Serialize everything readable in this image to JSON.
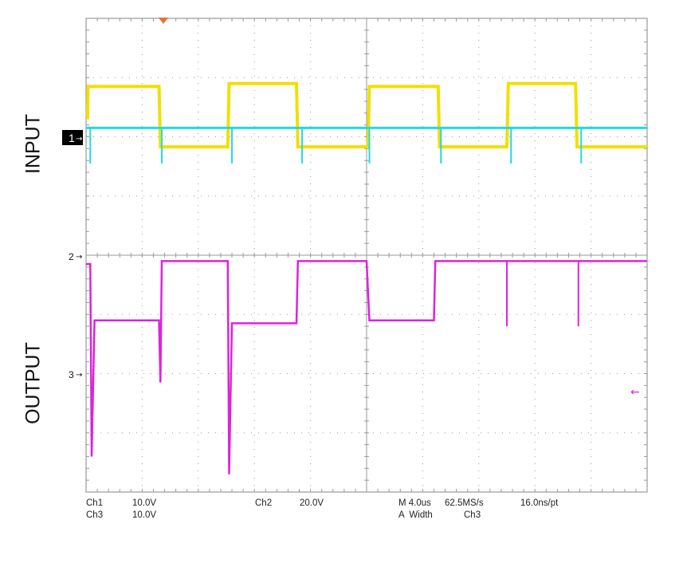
{
  "side_labels": {
    "top": "INPUT",
    "bottom": "OUTPUT"
  },
  "channel_markers": {
    "ch1": "1",
    "ch2": "2",
    "ch3": "3"
  },
  "readout": {
    "ch1_name": "Ch1",
    "ch1_scale": "10.0V",
    "ch3_name": "Ch3",
    "ch3_scale": "10.0V",
    "ch2_name": "Ch2",
    "ch2_scale": "20.0V",
    "timebase": "M 4.0us",
    "sample_rate": "62.5MS/s",
    "resolution": "16.0ns/pt",
    "measure": "A  Width",
    "measure_source": "Ch3"
  },
  "colors": {
    "background": "#ffffff",
    "grid": "#9a9a9a",
    "ch1": "#f0e000",
    "ch2": "#22d8ea",
    "ch3": "#dd22dd",
    "trigger": "#e87030",
    "marker_box": "#000000"
  },
  "chart_data": {
    "type": "line",
    "x_divisions": 10,
    "y_divisions": 8,
    "x_unit": "div",
    "y_unit": "div",
    "series": [
      {
        "channel": "Ch1",
        "color": "#f0e000",
        "points": [
          [
            0,
            1.68
          ],
          [
            0.05,
            1.68
          ],
          [
            0.07,
            1.15
          ],
          [
            2.6,
            1.15
          ],
          [
            2.65,
            2.17
          ],
          [
            5.05,
            2.17
          ],
          [
            5.1,
            1.1
          ],
          [
            7.5,
            1.1
          ],
          [
            7.55,
            2.17
          ],
          [
            9.95,
            2.17
          ],
          [
            10.05,
            2.17
          ],
          [
            10.1,
            1.15
          ],
          [
            12.55,
            1.15
          ],
          [
            12.6,
            2.17
          ],
          [
            15.0,
            2.17
          ],
          [
            15.05,
            1.1
          ],
          [
            17.45,
            1.1
          ],
          [
            17.5,
            2.17
          ],
          [
            20,
            2.17
          ]
        ]
      },
      {
        "channel": "Ch2",
        "color": "#22d8ea",
        "baseline": 0.75,
        "spikes": [
          [
            0.15,
            -0.2
          ],
          [
            2.7,
            -0.2
          ],
          [
            5.2,
            -0.2
          ],
          [
            7.7,
            -0.2
          ],
          [
            10.1,
            -0.2
          ],
          [
            12.65,
            -0.2
          ],
          [
            15.15,
            -0.2
          ],
          [
            17.65,
            -0.2
          ]
        ]
      },
      {
        "channel": "Ch3",
        "color": "#dd22dd",
        "points": [
          [
            0,
            4.45
          ],
          [
            0.15,
            4.45
          ],
          [
            0.2,
            7.7
          ],
          [
            0.3,
            5.4
          ],
          [
            2.6,
            5.4
          ],
          [
            2.65,
            6.45
          ],
          [
            2.7,
            4.4
          ],
          [
            5.05,
            4.4
          ],
          [
            5.1,
            8.0
          ],
          [
            5.2,
            5.45
          ],
          [
            7.5,
            5.45
          ],
          [
            7.55,
            4.4
          ],
          [
            10,
            4.4
          ],
          [
            10.1,
            5.4
          ],
          [
            12.4,
            5.4
          ],
          [
            12.45,
            4.4
          ],
          [
            20,
            4.4
          ]
        ],
        "spikes": [
          [
            15.0,
            5.2
          ],
          [
            17.55,
            5.2
          ]
        ]
      }
    ]
  }
}
